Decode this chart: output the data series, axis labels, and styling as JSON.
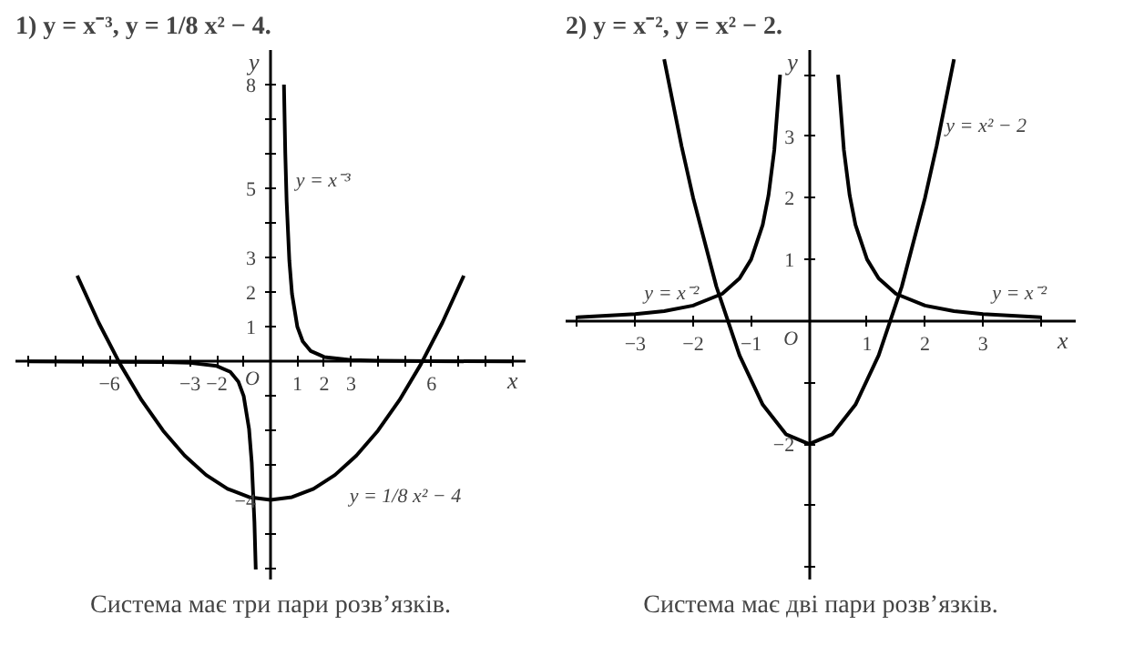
{
  "chart_data": [
    {
      "type": "line",
      "title": "1) y = x⁻³,  y = 1/8 x² − 4.",
      "xlabel": "x",
      "ylabel": "y",
      "xlim": [
        -9.5,
        9.5
      ],
      "ylim": [
        -6.3,
        9
      ],
      "xticks": [
        {
          "value": -9,
          "label": null
        },
        {
          "value": -8,
          "label": null
        },
        {
          "value": -7,
          "label": null
        },
        -6,
        {
          "value": -5,
          "label": null
        },
        {
          "value": -4,
          "label": null
        },
        -3,
        -2,
        {
          "value": -1,
          "label": null
        },
        1,
        2,
        3,
        {
          "value": 4,
          "label": null
        },
        {
          "value": 5,
          "label": null
        },
        6,
        {
          "value": 7,
          "label": null
        },
        {
          "value": 8,
          "label": null
        },
        {
          "value": 9,
          "label": null
        }
      ],
      "yticks": [
        {
          "value": -6,
          "label": null
        },
        {
          "value": -5,
          "label": null
        },
        -4,
        {
          "value": -3,
          "label": null
        },
        {
          "value": -2,
          "label": null
        },
        {
          "value": -1,
          "label": null
        },
        1,
        2,
        3,
        {
          "value": 4,
          "label": null
        },
        5,
        {
          "value": 6,
          "label": null
        },
        {
          "value": 7,
          "label": null
        },
        8
      ],
      "grid": false,
      "series": [
        {
          "color": "#000000",
          "x": [
            -9,
            -6,
            -4,
            -3,
            -2,
            -1.5,
            -1.2,
            -1,
            -0.8,
            -0.7,
            -0.6,
            -0.55,
            null,
            0.5,
            0.55,
            0.6,
            0.7,
            0.8,
            1,
            1.2,
            1.5,
            2,
            3,
            4,
            6,
            9
          ],
          "values": [
            0,
            -0.01,
            -0.02,
            -0.04,
            -0.13,
            -0.3,
            -0.58,
            -1,
            -1.95,
            -2.92,
            -4.63,
            -6.01,
            null,
            8,
            6.01,
            4.63,
            2.92,
            1.95,
            1,
            0.58,
            0.3,
            0.13,
            0.04,
            0.02,
            0.01,
            0
          ]
        },
        {
          "color": "#000000",
          "x": [
            -7.2,
            -6.4,
            -5.6,
            -4.8,
            -4,
            -3.2,
            -2.4,
            -1.6,
            -0.8,
            0,
            0.8,
            1.6,
            2.4,
            3.2,
            4,
            4.8,
            5.6,
            6.4,
            7.2
          ],
          "values": [
            2.48,
            1.12,
            -0.08,
            -1.12,
            -2,
            -2.72,
            -3.28,
            -3.68,
            -3.92,
            -4,
            -3.92,
            -3.68,
            -3.28,
            -2.72,
            -2,
            -1.12,
            -0.08,
            1.12,
            2.48
          ]
        }
      ],
      "annotations": [
        {
          "text": "y = x⁻³",
          "x": 0.6,
          "y": 4.63
        },
        {
          "text": "y = 1/8 x² − 4",
          "x": 2.4,
          "y": -3.28
        },
        "O",
        "Система має три пари розв’язків."
      ]
    },
    {
      "type": "line",
      "title": "2) y = x⁻²,  y = x² − 2.",
      "xlabel": "x",
      "ylabel": "y",
      "xlim": [
        -4.2,
        4.6
      ],
      "ylim": [
        -4.2,
        4.4
      ],
      "xticks": [
        {
          "value": -4,
          "label": null
        },
        -3,
        -2,
        -1,
        1,
        2,
        3,
        {
          "value": 4,
          "label": null
        }
      ],
      "yticks": [
        {
          "value": -4,
          "label": null
        },
        {
          "value": -3,
          "label": null
        },
        -2,
        {
          "value": -1,
          "label": null
        },
        1,
        2,
        3,
        {
          "value": 4,
          "label": null
        }
      ],
      "grid": false,
      "series": [
        {
          "color": "#000000",
          "x": [
            -4,
            -3,
            -2.5,
            -2,
            -1.5,
            -1.2,
            -1,
            -0.8,
            -0.7,
            -0.6,
            -0.5,
            null,
            0.5,
            0.6,
            0.7,
            0.8,
            1,
            1.2,
            1.5,
            2,
            2.5,
            3,
            4
          ],
          "values": [
            0.06,
            0.11,
            0.16,
            0.25,
            0.44,
            0.69,
            1,
            1.56,
            2.04,
            2.78,
            4,
            null,
            4,
            2.78,
            2.04,
            1.56,
            1,
            0.69,
            0.44,
            0.25,
            0.16,
            0.11,
            0.06
          ]
        },
        {
          "color": "#000000",
          "x": [
            -2.5,
            -2.2,
            -2,
            -1.6,
            -1.2,
            -0.8,
            -0.4,
            0,
            0.4,
            0.8,
            1.2,
            1.6,
            2,
            2.2,
            2.5
          ],
          "values": [
            4.25,
            2.84,
            2,
            0.56,
            -0.56,
            -1.36,
            -1.84,
            -2,
            -1.84,
            -1.36,
            -0.56,
            0.56,
            2,
            2.84,
            4.25
          ]
        }
      ],
      "annotations": [
        {
          "text": "y = x² − 2",
          "x": 2.2,
          "y": 2.84
        },
        {
          "text": "y = x⁻²",
          "x": -3,
          "y": 0.11
        },
        {
          "text": "y = x⁻²",
          "x": 3,
          "y": 0.11
        },
        "O",
        "Система має дві пари розв’язків."
      ]
    }
  ]
}
